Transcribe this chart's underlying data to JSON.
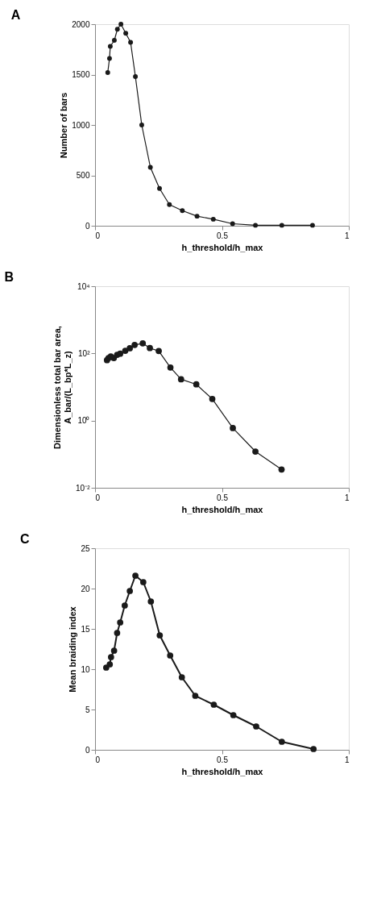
{
  "chart_data": [
    {
      "type": "line",
      "title": "A",
      "xlabel": "h_threshold/h_max",
      "ylabel": "Number of bars",
      "marker": "circle",
      "grid": false,
      "xlim": [
        0,
        1
      ],
      "xticks": [
        0,
        0.5,
        1
      ],
      "ylim": [
        0,
        2000
      ],
      "yticks": [
        0,
        500,
        1000,
        1500,
        2000
      ],
      "x": [
        0.05,
        0.057,
        0.06,
        0.076,
        0.088,
        0.102,
        0.121,
        0.14,
        0.159,
        0.184,
        0.218,
        0.254,
        0.293,
        0.344,
        0.402,
        0.466,
        0.542,
        0.632,
        0.736,
        0.857
      ],
      "series": [
        {
          "color": "#1a1a1a",
          "values": [
            1520,
            1660,
            1780,
            1840,
            1950,
            2000,
            1910,
            1820,
            1480,
            1000,
            580,
            370,
            210,
            150,
            95,
            65,
            20,
            5,
            5,
            5
          ]
        }
      ]
    },
    {
      "type": "line",
      "title": "B",
      "xlabel": "h_threshold/h_max",
      "ylabel": "Dimensionless total bar area, A_bar/(L_bp*L_z)",
      "marker": "circle",
      "grid": false,
      "log": "y",
      "xlim": [
        0,
        1
      ],
      "xticks": [
        0,
        0.5,
        1
      ],
      "ylim": [
        0.01,
        10000
      ],
      "yticks": [
        {
          "value": 0.01,
          "label": "10⁻²"
        },
        {
          "value": 1,
          "label": "10⁰"
        },
        {
          "value": 100,
          "label": "10²"
        },
        {
          "value": 10000,
          "label": "10⁴"
        }
      ],
      "x": [
        0.047,
        0.053,
        0.062,
        0.074,
        0.087,
        0.099,
        0.119,
        0.137,
        0.156,
        0.188,
        0.216,
        0.251,
        0.297,
        0.339,
        0.399,
        0.462,
        0.543,
        0.632,
        0.735
      ],
      "series": [
        {
          "color": "#1a1a1a",
          "values": [
            63,
            73,
            81,
            73,
            91,
            98,
            120,
            142,
            179,
            200,
            144,
            118,
            38,
            17,
            12,
            4.4,
            0.6,
            0.12,
            0.035
          ]
        }
      ]
    },
    {
      "type": "line",
      "title": "C",
      "xlabel": "h_threshold/h_max",
      "ylabel": "Mean braiding index",
      "marker": "circle",
      "grid": false,
      "xlim": [
        0,
        1
      ],
      "xticks": [
        0,
        0.5,
        1
      ],
      "ylim": [
        0,
        25
      ],
      "yticks": [
        0,
        5,
        10,
        15,
        20,
        25
      ],
      "x": [
        0.044,
        0.058,
        0.063,
        0.075,
        0.087,
        0.099,
        0.117,
        0.137,
        0.159,
        0.19,
        0.22,
        0.255,
        0.296,
        0.342,
        0.395,
        0.468,
        0.545,
        0.635,
        0.736,
        0.861
      ],
      "series": [
        {
          "color": "#1a1a1a",
          "values": [
            10.2,
            10.6,
            11.5,
            12.3,
            14.5,
            15.8,
            17.9,
            19.7,
            21.6,
            20.8,
            18.4,
            14.2,
            11.7,
            9.0,
            6.7,
            5.6,
            4.3,
            2.9,
            1.0,
            0.1
          ]
        }
      ]
    }
  ]
}
